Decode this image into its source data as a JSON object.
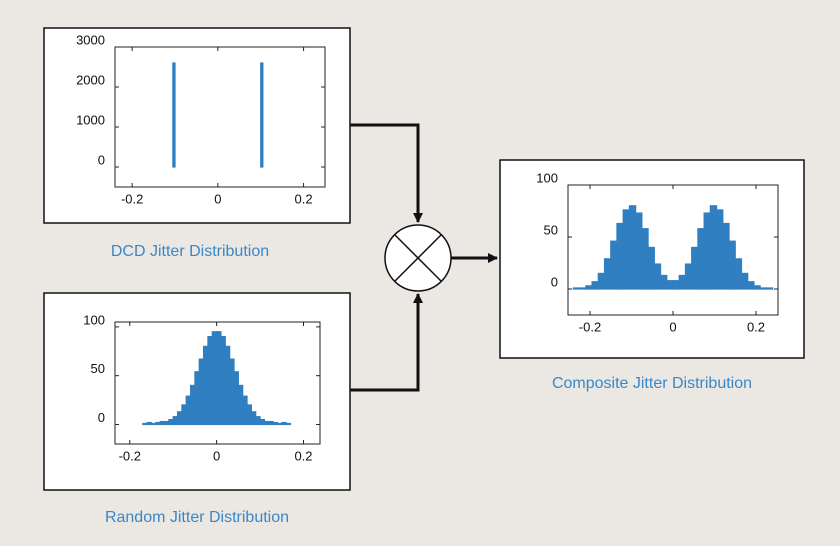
{
  "chart_data": [
    {
      "type": "histogram",
      "title": "DCD Jitter Distribution",
      "bins": [
        -0.105,
        -0.1,
        0.1,
        0.105
      ],
      "values": [
        2600,
        0,
        2600
      ],
      "color": "#2f7fc1",
      "xlim": [
        -0.24,
        0.25
      ],
      "ylim": [
        -500,
        3000
      ],
      "xticks": [
        -0.2,
        0,
        0.2
      ],
      "yticks": [
        0,
        1000,
        2000,
        3000
      ]
    },
    {
      "type": "histogram",
      "title": "Random Jitter Distribution",
      "bins": [
        -0.17,
        -0.16,
        -0.15,
        -0.14,
        -0.13,
        -0.12,
        -0.11,
        -0.1,
        -0.09,
        -0.08,
        -0.07,
        -0.06,
        -0.05,
        -0.04,
        -0.03,
        -0.02,
        -0.01,
        0,
        0.01,
        0.02,
        0.03,
        0.04,
        0.05,
        0.06,
        0.07,
        0.08,
        0.09,
        0.1,
        0.11,
        0.12,
        0.13,
        0.14,
        0.15,
        0.16,
        0.17
      ],
      "values": [
        1,
        2,
        1,
        2,
        3,
        3,
        5,
        8,
        13,
        20,
        29,
        40,
        54,
        67,
        80,
        90,
        95,
        95,
        90,
        80,
        67,
        54,
        40,
        29,
        20,
        13,
        8,
        5,
        3,
        3,
        2,
        1,
        2,
        1
      ],
      "color": "#2f7fc1",
      "xlim": [
        -0.234,
        0.238
      ],
      "ylim": [
        -20,
        105
      ],
      "xticks": [
        -0.2,
        0,
        0.2
      ],
      "yticks": [
        0,
        50,
        100
      ]
    },
    {
      "type": "histogram",
      "title": "Composite Jitter Distribution",
      "bins": [
        -0.24,
        -0.225,
        -0.21,
        -0.195,
        -0.18,
        -0.165,
        -0.15,
        -0.135,
        -0.12,
        -0.105,
        -0.09,
        -0.075,
        -0.06,
        -0.045,
        -0.03,
        -0.015,
        0,
        0.015,
        0.03,
        0.045,
        0.06,
        0.075,
        0.09,
        0.105,
        0.12,
        0.135,
        0.15,
        0.165,
        0.18,
        0.195,
        0.21,
        0.225,
        0.24
      ],
      "values": [
        1,
        1,
        3,
        7,
        15,
        29,
        46,
        63,
        76,
        80,
        73,
        58,
        40,
        24,
        13,
        8,
        8,
        13,
        24,
        40,
        58,
        73,
        80,
        76,
        63,
        46,
        29,
        15,
        7,
        3,
        1,
        1
      ],
      "color": "#2f7fc1",
      "xlim": [
        -0.253,
        0.253
      ],
      "ylim": [
        -25,
        100
      ],
      "xticks": [
        -0.2,
        0,
        0.2
      ],
      "yticks": [
        0,
        50,
        100
      ]
    }
  ]
}
